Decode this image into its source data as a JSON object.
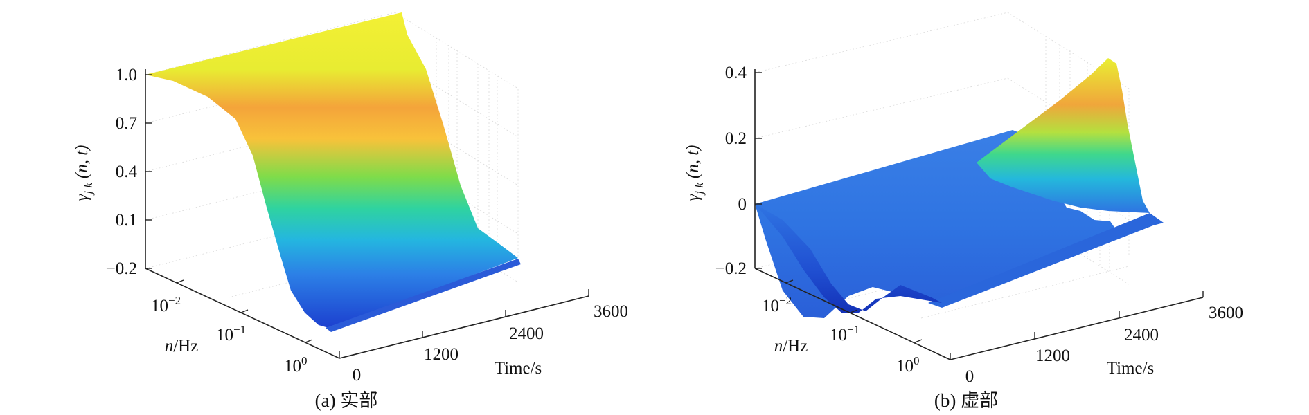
{
  "chart_data": [
    {
      "type": "surface",
      "caption": "(a) 实部",
      "ylabel": "γjk (n, t)",
      "ylabel_parts": {
        "base": "γ",
        "sub": "j k",
        "args": "(n, t)"
      },
      "xlabel": "Time/s",
      "nlabel": "n/Hz",
      "z_ticks": [
        "1.0",
        "0.7",
        "0.4",
        "0.1",
        "−0.2"
      ],
      "z_tick_values": [
        1.0,
        0.7,
        0.4,
        0.1,
        -0.2
      ],
      "zlim": [
        -0.2,
        1.0
      ],
      "time_ticks": [
        "0",
        "1200",
        "2400",
        "3600"
      ],
      "time_tick_values": [
        0,
        1200,
        2400,
        3600
      ],
      "xlim": [
        0,
        3600
      ],
      "freq_ticks": [
        {
          "base": "10",
          "exp": "−2"
        },
        {
          "base": "10",
          "exp": "−1"
        },
        {
          "base": "10",
          "exp": "0"
        }
      ],
      "freq_tick_values": [
        0.01,
        0.1,
        1
      ],
      "freq_scale": "log",
      "profile_vs_log10_n": {
        "log10_n": [
          -3.0,
          -2.6,
          -2.2,
          -1.9,
          -1.6,
          -1.3,
          -1.0,
          -0.7,
          -0.4,
          -0.2,
          0.0
        ],
        "z": [
          0.98,
          0.93,
          0.82,
          0.62,
          0.38,
          0.12,
          -0.06,
          -0.16,
          -0.2,
          -0.19,
          -0.2
        ]
      },
      "time_variation": "nearly constant along Time",
      "colormap": "parula",
      "grid": true
    },
    {
      "type": "surface",
      "caption": "(b) 虚部",
      "ylabel": "γjk (n, t)",
      "ylabel_parts": {
        "base": "γ",
        "sub": "j k",
        "args": "(n, t)"
      },
      "xlabel": "Time/s",
      "nlabel": "n/Hz",
      "z_ticks": [
        "0.4",
        "0.2",
        "0",
        "−0.2"
      ],
      "z_tick_values": [
        0.4,
        0.2,
        0.0,
        -0.2
      ],
      "zlim": [
        -0.2,
        0.4
      ],
      "time_ticks": [
        "0",
        "1200",
        "2400",
        "3600"
      ],
      "time_tick_values": [
        0,
        1200,
        2400,
        3600
      ],
      "xlim": [
        0,
        3600
      ],
      "freq_ticks": [
        {
          "base": "10",
          "exp": "−2"
        },
        {
          "base": "10",
          "exp": "−1"
        },
        {
          "base": "10",
          "exp": "0"
        }
      ],
      "freq_tick_values": [
        0.01,
        0.1,
        1
      ],
      "freq_scale": "log",
      "profile_at_t0": {
        "log10_n": [
          -3.0,
          -2.5,
          -2.0,
          -1.6,
          -1.3,
          -1.1,
          -0.9,
          -0.6,
          -0.3,
          0.0
        ],
        "z": [
          0.0,
          -0.02,
          -0.08,
          -0.17,
          -0.22,
          -0.2,
          -0.13,
          -0.07,
          -0.06,
          -0.06
        ]
      },
      "profile_at_t3600": {
        "log10_n": [
          -3.0,
          -2.6,
          -2.3,
          -2.0,
          -1.7,
          -1.4,
          -1.2,
          -1.0,
          -0.6,
          0.0
        ],
        "z": [
          0.0,
          0.04,
          0.12,
          0.26,
          0.38,
          0.32,
          0.12,
          -0.04,
          -0.05,
          -0.05
        ]
      },
      "colormap": "parula",
      "grid": true
    }
  ]
}
